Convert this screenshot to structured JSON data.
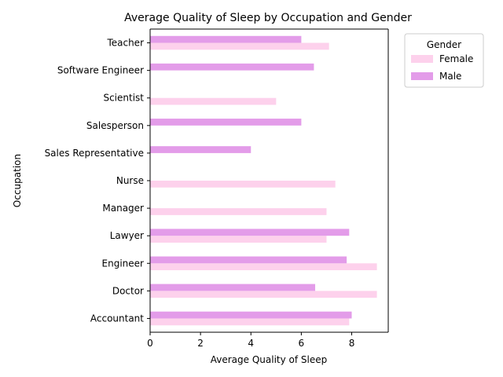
{
  "chart_data": {
    "type": "bar",
    "orientation": "horizontal",
    "title": "Average Quality of Sleep by Occupation and Gender",
    "xlabel": "Average Quality of Sleep",
    "ylabel": "Occupation",
    "xlim": [
      0,
      9.45
    ],
    "xticks": [
      "0",
      "2",
      "4",
      "6",
      "8"
    ],
    "categories": [
      "Accountant",
      "Doctor",
      "Engineer",
      "Lawyer",
      "Manager",
      "Nurse",
      "Sales Representative",
      "Salesperson",
      "Scientist",
      "Software Engineer",
      "Teacher"
    ],
    "series": [
      {
        "name": "Female",
        "color": "#fdd1ec",
        "values": [
          7.9,
          9.0,
          9.0,
          7.0,
          7.0,
          7.35,
          null,
          null,
          5.0,
          null,
          7.1
        ]
      },
      {
        "name": "Male",
        "color": "#e39ce9",
        "values": [
          8.0,
          6.55,
          7.8,
          7.9,
          null,
          null,
          4.0,
          6.0,
          null,
          6.5,
          6.0
        ]
      }
    ],
    "legend": {
      "title": "Gender",
      "position": "upper right outside"
    },
    "grid": false
  }
}
